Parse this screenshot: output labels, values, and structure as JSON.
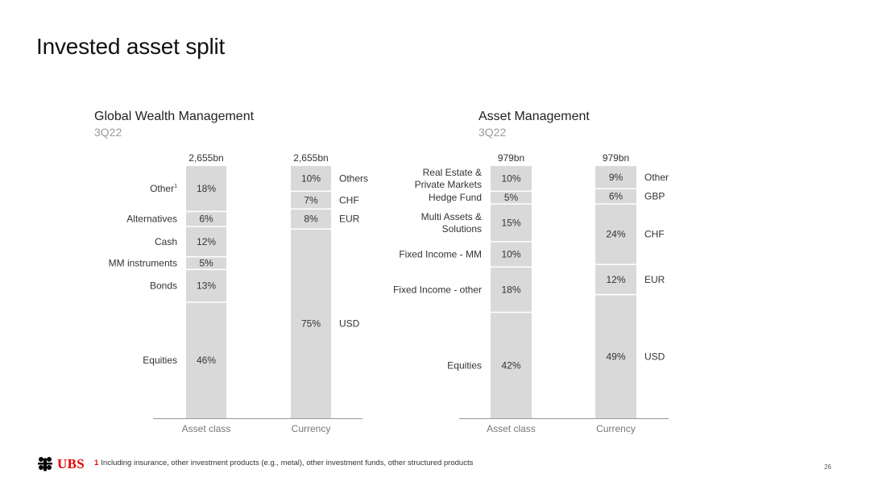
{
  "title": "Invested asset split",
  "footnote": {
    "marker": "1",
    "text": "Including insurance, other investment products (e.g., metal), other investment funds, other structured products"
  },
  "page_number": "26",
  "logo": {
    "name": "ubs-keys-icon",
    "text": "UBS",
    "color": "#e60000"
  },
  "colors": {
    "bar": "#d9d9d9",
    "divider": "#ffffff",
    "axis": "#999999"
  },
  "chart_data": [
    {
      "type": "stacked-bar",
      "title": "Global Wealth Management",
      "subtitle": "3Q22",
      "bars": [
        {
          "label": "Asset class",
          "total": "2,655bn",
          "label_side": "left",
          "segments": [
            {
              "name": "Other",
              "name_sup": "1",
              "value": 18
            },
            {
              "name": "Alternatives",
              "value": 6
            },
            {
              "name": "Cash",
              "value": 12
            },
            {
              "name": "MM instruments",
              "value": 5
            },
            {
              "name": "Bonds",
              "value": 13
            },
            {
              "name": "Equities",
              "value": 46
            }
          ]
        },
        {
          "label": "Currency",
          "total": "2,655bn",
          "label_side": "right",
          "segments": [
            {
              "name": "Others",
              "value": 10
            },
            {
              "name": "CHF",
              "value": 7
            },
            {
              "name": "EUR",
              "value": 8
            },
            {
              "name": "USD",
              "value": 75
            }
          ]
        }
      ]
    },
    {
      "type": "stacked-bar",
      "title": "Asset Management",
      "subtitle": "3Q22",
      "bars": [
        {
          "label": "Asset class",
          "total": "979bn",
          "label_side": "left",
          "segments": [
            {
              "name": "Real Estate &\nPrivate Markets",
              "value": 10
            },
            {
              "name": "Hedge Fund",
              "value": 5
            },
            {
              "name": "Multi Assets &\nSolutions",
              "value": 15
            },
            {
              "name": "Fixed Income - MM",
              "value": 10
            },
            {
              "name": "Fixed Income - other",
              "value": 18
            },
            {
              "name": "Equities",
              "value": 42
            }
          ]
        },
        {
          "label": "Currency",
          "total": "979bn",
          "label_side": "right",
          "segments": [
            {
              "name": "Other",
              "value": 9
            },
            {
              "name": "GBP",
              "value": 6
            },
            {
              "name": "CHF",
              "value": 24
            },
            {
              "name": "EUR",
              "value": 12
            },
            {
              "name": "USD",
              "value": 49
            }
          ]
        }
      ]
    }
  ]
}
